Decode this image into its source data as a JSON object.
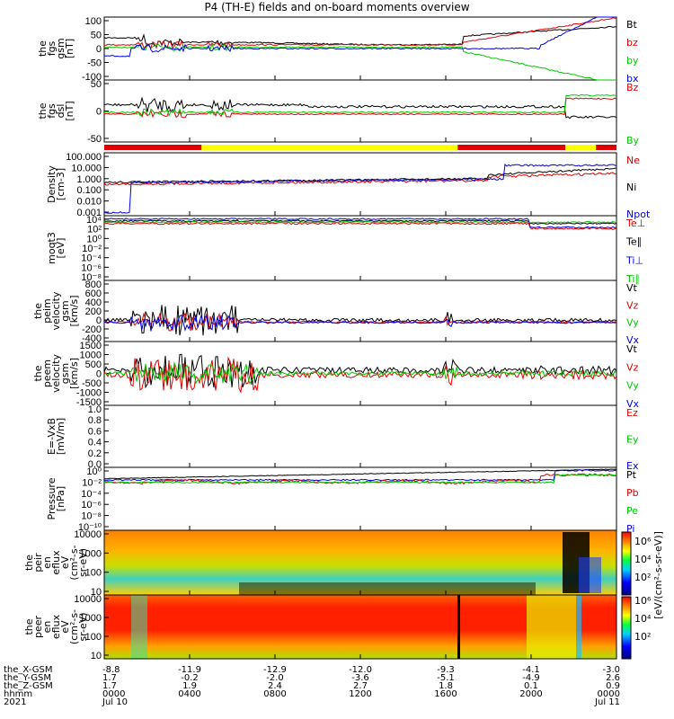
{
  "chart_data": {
    "type": "line",
    "title": "P4 (TH-E) fields and on-board moments overview",
    "colors": {
      "black": "#000000",
      "red": "#e00000",
      "green": "#00c800",
      "blue": "#0000e0",
      "yellow": "#ffff00"
    },
    "panels": [
      {
        "id": "fgs-gsm",
        "ylabel": [
          "the",
          "fgs",
          "gsm",
          "[nT]"
        ],
        "scale": "linear",
        "ylim": [
          -100,
          100
        ],
        "yticks": [
          "100",
          "50",
          "0",
          "-50",
          "-100"
        ],
        "legend": [
          "Bt",
          "bz",
          "by",
          "bx"
        ],
        "legend_colors": [
          "black",
          "red",
          "green",
          "blue"
        ]
      },
      {
        "id": "fgs-dsl",
        "ylabel": [
          "the",
          "fgs",
          "dsl",
          "[nT]"
        ],
        "scale": "linear",
        "ylim": [
          -80,
          80
        ],
        "yticks": [
          "50",
          "0",
          "-50"
        ],
        "legend": [
          "Bz",
          "By"
        ],
        "legend_colors": [
          "red",
          "green"
        ]
      },
      {
        "id": "density",
        "ylabel": [
          "Density",
          "[cm-3]"
        ],
        "scale": "log",
        "ylim": [
          0.001,
          100
        ],
        "yticks": [
          "100.000",
          "10.000",
          "1.000",
          "0.100",
          "0.010",
          "0.001"
        ],
        "legend": [
          "Ne",
          "Ni",
          "Npot"
        ],
        "legend_colors": [
          "red",
          "black",
          "blue"
        ]
      },
      {
        "id": "temperature",
        "ylabel": [
          "moqt3",
          "[eV]"
        ],
        "scale": "log",
        "ylim": [
          1e-05,
          100000
        ],
        "yticks": [
          "10⁴",
          "10²",
          "10⁰",
          "10⁻²",
          "10⁻⁴",
          "10⁻⁶",
          "10⁻⁸"
        ],
        "legend": [
          "Te⊥",
          "Te∥",
          "Ti⊥",
          "Ti∥"
        ],
        "legend_colors": [
          "red",
          "black",
          "blue",
          "green"
        ]
      },
      {
        "id": "peim-velocity",
        "ylabel": [
          "the",
          "peim",
          "velocity",
          "gsm",
          "[km/s]"
        ],
        "scale": "linear",
        "ylim": [
          -400,
          800
        ],
        "yticks": [
          "800",
          "600",
          "400",
          "200",
          "0",
          "-200",
          "-400"
        ],
        "legend": [
          "Vt",
          "Vz",
          "Vy",
          "Vx"
        ],
        "legend_colors": [
          "black",
          "red",
          "green",
          "blue"
        ]
      },
      {
        "id": "peem-velocity",
        "ylabel": [
          "the",
          "peem",
          "velocity",
          "gsm",
          "[km/s]"
        ],
        "scale": "linear",
        "ylim": [
          -1500,
          1500
        ],
        "yticks": [
          "1500",
          "1000",
          "500",
          "0",
          "-500",
          "-1000",
          "-1500"
        ],
        "legend": [
          "Vt",
          "Vz",
          "Vy",
          "Vx"
        ],
        "legend_colors": [
          "black",
          "red",
          "green",
          "blue"
        ]
      },
      {
        "id": "efield",
        "ylabel": [
          "E=-VxB",
          "[mV/m]"
        ],
        "scale": "linear",
        "ylim": [
          0,
          1
        ],
        "yticks": [
          "1.0",
          "0.8",
          "0.6",
          "0.4",
          "0.2",
          "0.0"
        ],
        "legend": [
          "Ez",
          "Ey",
          "Ex"
        ],
        "legend_colors": [
          "red",
          "green",
          "blue"
        ]
      },
      {
        "id": "pressure",
        "ylabel": [
          "Pressure",
          "[nPa]"
        ],
        "scale": "log",
        "ylim": [
          1e-10,
          1
        ],
        "yticks": [
          "10⁰",
          "10⁻²",
          "10⁻⁴",
          "10⁻⁶",
          "10⁻⁸",
          "10⁻¹⁰"
        ],
        "legend": [
          "Pt",
          "Pb",
          "Pe",
          "Pi"
        ],
        "legend_colors": [
          "black",
          "red",
          "green",
          "blue"
        ]
      },
      {
        "id": "peir-spectrogram",
        "ylabel": [
          "the",
          "peir",
          "en",
          "eflux",
          "eV",
          "(cm²-s-",
          "sr-eV)"
        ],
        "scale": "log",
        "ylim": [
          10,
          10000
        ],
        "yticks": [
          "10000",
          "1000",
          "100",
          "10"
        ],
        "legend": [],
        "legend_colors": []
      },
      {
        "id": "peer-spectrogram",
        "ylabel": [
          "the",
          "peer",
          "en",
          "eflux",
          "eV",
          "(cm²-s-",
          "sr-eV)"
        ],
        "scale": "log",
        "ylim": [
          10,
          10000
        ],
        "yticks": [
          "10000",
          "1000",
          "100",
          "10"
        ],
        "legend": [],
        "legend_colors": []
      }
    ],
    "colorbar": {
      "label": "[eV/(cm²-s-sr-eV)]",
      "ticks": [
        "10⁶",
        "10⁴",
        "10²",
        "10⁶",
        "10⁴",
        "10²"
      ]
    },
    "mode_bar": [
      {
        "from": 0,
        "to": 0.19,
        "color": "red"
      },
      {
        "from": 0.19,
        "to": 0.69,
        "color": "yellow"
      },
      {
        "from": 0.69,
        "to": 0.9,
        "color": "red"
      },
      {
        "from": 0.9,
        "to": 0.96,
        "color": "yellow"
      },
      {
        "from": 0.96,
        "to": 1.0,
        "color": "red"
      }
    ],
    "x_axis": {
      "row_labels": [
        "the_X-GSM",
        "the_Y-GSM",
        "the_Z-GSM",
        "hhmm",
        "2021"
      ],
      "ticks": [
        {
          "x": 0,
          "values": [
            "-8.8",
            "1.7",
            "1.7",
            "0000",
            "Jul 10"
          ]
        },
        {
          "x": 0.1667,
          "values": [
            "-11.9",
            "-0.2",
            "1.9",
            "0400",
            ""
          ]
        },
        {
          "x": 0.3333,
          "values": [
            "-12.9",
            "-2.0",
            "2.4",
            "0800",
            ""
          ]
        },
        {
          "x": 0.5,
          "values": [
            "-12.0",
            "-3.6",
            "2.7",
            "1200",
            ""
          ]
        },
        {
          "x": 0.6667,
          "values": [
            "-9.3",
            "-5.1",
            "1.8",
            "1600",
            ""
          ]
        },
        {
          "x": 0.8333,
          "values": [
            "-4.1",
            "-4.9",
            "0.1",
            "2000",
            ""
          ]
        },
        {
          "x": 1.0,
          "values": [
            "-3.0",
            "2.6",
            "0.9",
            "0000",
            "Jul 11"
          ]
        }
      ]
    }
  }
}
